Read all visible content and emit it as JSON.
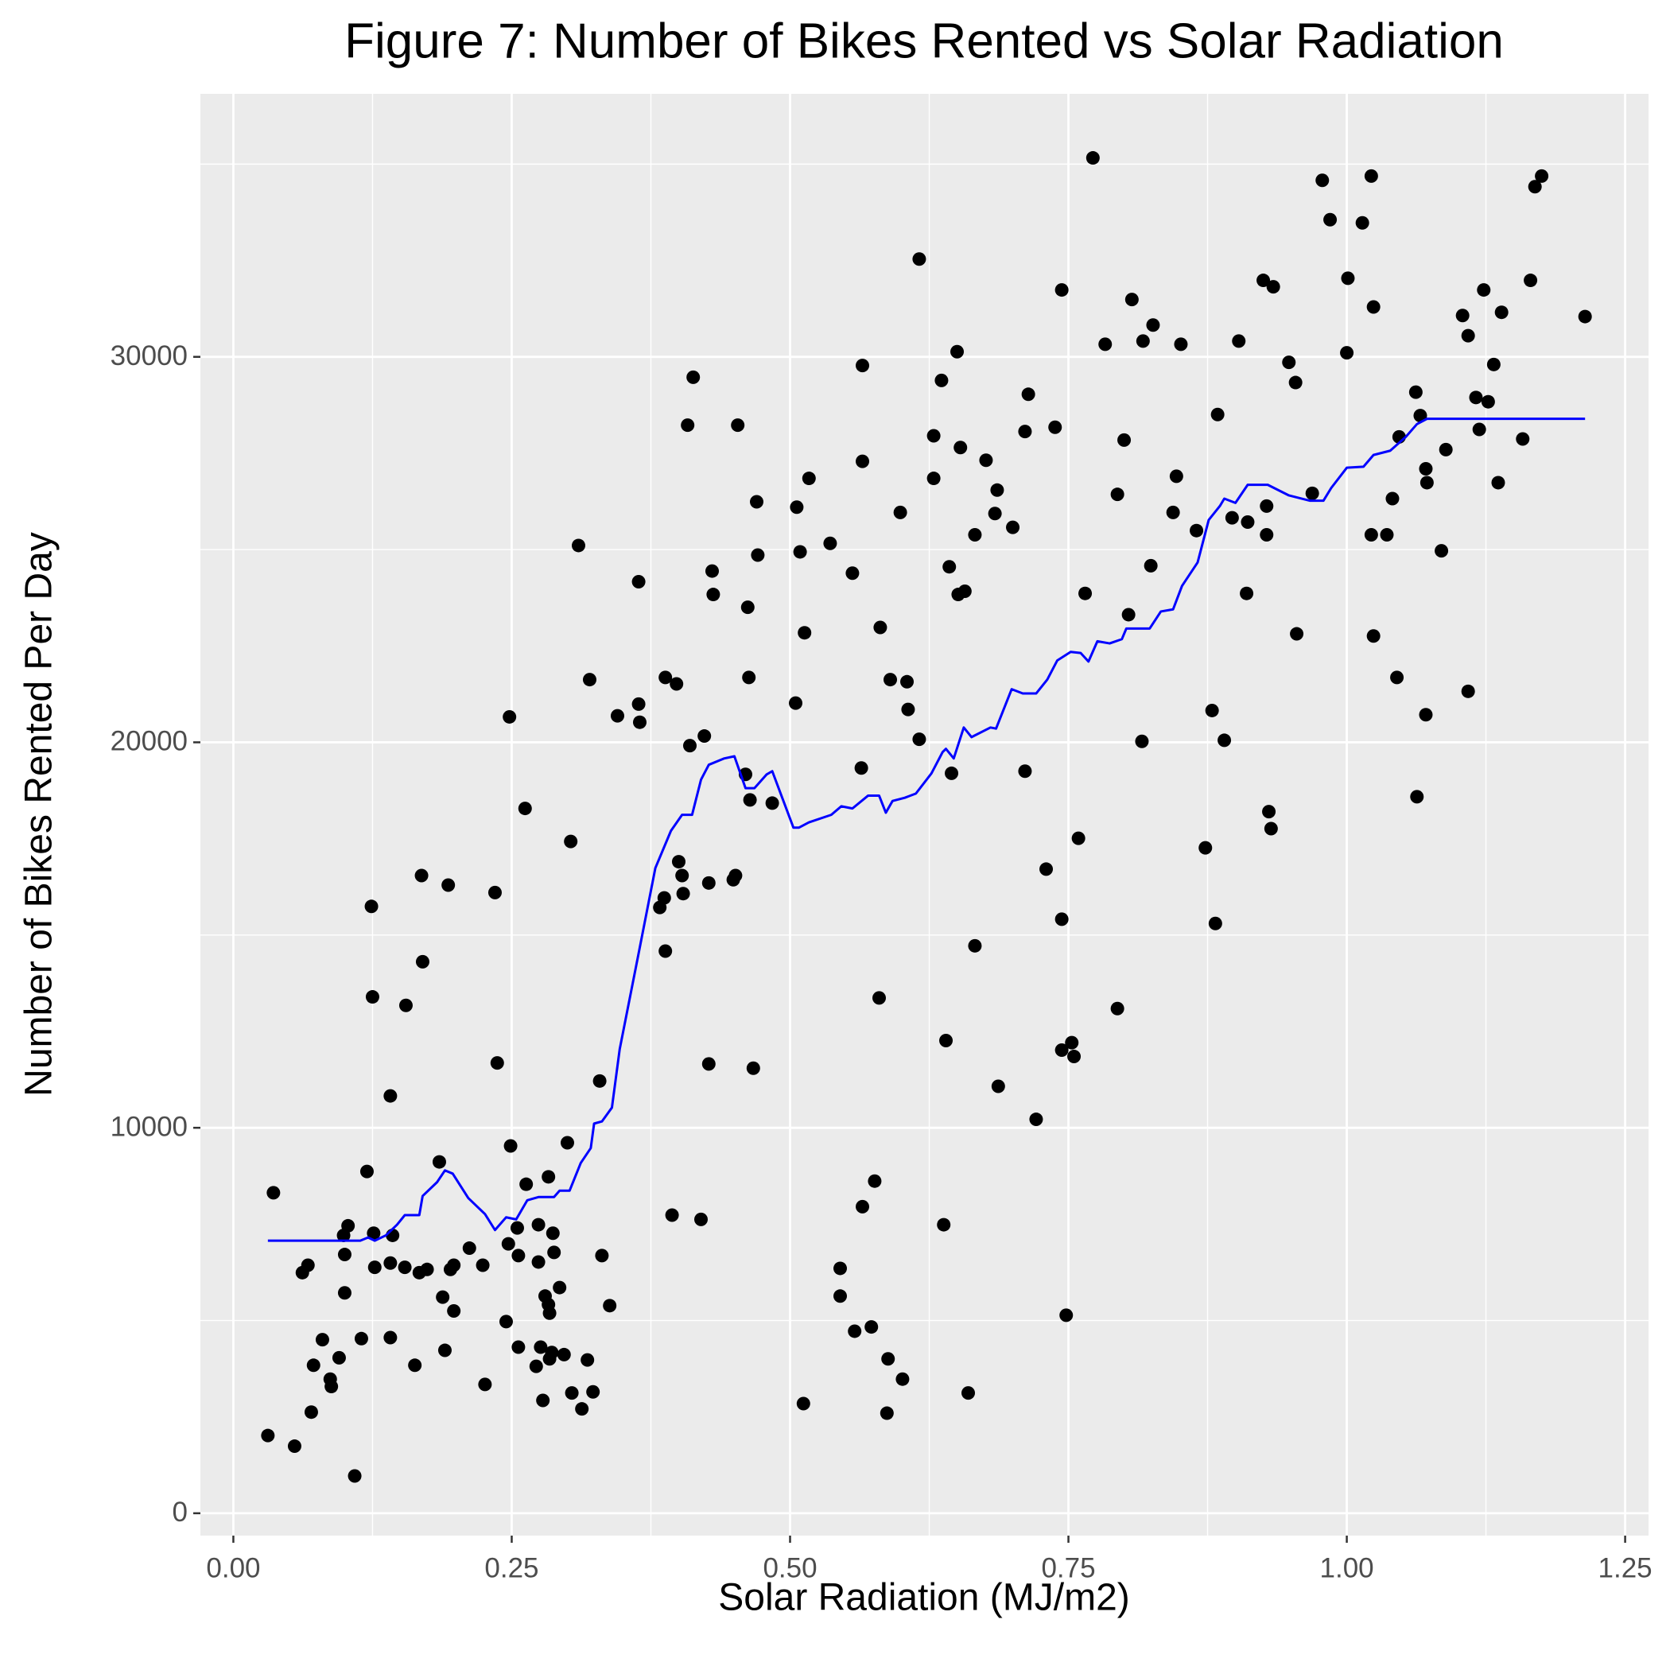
{
  "chart_data": {
    "type": "scatter",
    "title": "Figure 7: Number of Bikes Rented vs Solar Radiation",
    "x_label": "Solar Radiation (MJ/m2)",
    "y_label": "Number of Bikes Rented Per Day",
    "xlim": [
      -0.0296,
      1.271
    ],
    "ylim": [
      -580,
      36823
    ],
    "xticks": [
      {
        "value": 0,
        "label": "0.00"
      },
      0.25,
      {
        "value": 0.5,
        "label": "0.50"
      },
      0.75,
      {
        "value": 1,
        "label": "1.00"
      },
      1.25
    ],
    "yticks": [
      0,
      10000,
      20000,
      30000
    ],
    "grid": true,
    "background": "#ebebeb",
    "series": [
      {
        "type": "scatter",
        "color": "#000000",
        "x": [
          0.036,
          0.031,
          0.055,
          0.062,
          0.067,
          0.07,
          0.072,
          0.08,
          0.087,
          0.088,
          0.095,
          0.099,
          0.1,
          0.1,
          0.103,
          0.109,
          0.115,
          0.12,
          0.124,
          0.125,
          0.126,
          0.127,
          0.141,
          0.141,
          0.141,
          0.143,
          0.154,
          0.155,
          0.163,
          0.167,
          0.169,
          0.17,
          0.174,
          0.185,
          0.188,
          0.19,
          0.193,
          0.195,
          0.198,
          0.198,
          0.212,
          0.224,
          0.226,
          0.235,
          0.237,
          0.245,
          0.247,
          0.248,
          0.249,
          0.255,
          0.256,
          0.256,
          0.262,
          0.263,
          0.272,
          0.274,
          0.274,
          0.276,
          0.278,
          0.28,
          0.283,
          0.283,
          0.284,
          0.284,
          0.286,
          0.287,
          0.288,
          0.293,
          0.297,
          0.3,
          0.303,
          0.304,
          0.31,
          0.313,
          0.318,
          0.32,
          0.323,
          0.329,
          0.331,
          0.338,
          0.345,
          0.364,
          0.364,
          0.365,
          0.383,
          0.387,
          0.388,
          0.388,
          0.394,
          0.398,
          0.4,
          0.403,
          0.404,
          0.408,
          0.41,
          0.413,
          0.42,
          0.423,
          0.427,
          0.427,
          0.43,
          0.431,
          0.449,
          0.451,
          0.453,
          0.46,
          0.462,
          0.463,
          0.464,
          0.467,
          0.47,
          0.471,
          0.484,
          0.505,
          0.506,
          0.509,
          0.512,
          0.513,
          0.517,
          0.536,
          0.545,
          0.545,
          0.556,
          0.558,
          0.564,
          0.565,
          0.565,
          0.565,
          0.573,
          0.576,
          0.58,
          0.581,
          0.587,
          0.588,
          0.59,
          0.599,
          0.601,
          0.605,
          0.606,
          0.616,
          0.616,
          0.629,
          0.629,
          0.636,
          0.638,
          0.64,
          0.643,
          0.645,
          0.65,
          0.651,
          0.653,
          0.657,
          0.66,
          0.666,
          0.666,
          0.676,
          0.684,
          0.686,
          0.687,
          0.7,
          0.711,
          0.711,
          0.714,
          0.721,
          0.73,
          0.738,
          0.744,
          0.744,
          0.744,
          0.748,
          0.753,
          0.755,
          0.759,
          0.765,
          0.772,
          0.783,
          0.794,
          0.794,
          0.8,
          0.804,
          0.807,
          0.816,
          0.817,
          0.824,
          0.826,
          0.844,
          0.847,
          0.851,
          0.865,
          0.873,
          0.879,
          0.882,
          0.884,
          0.89,
          0.897,
          0.903,
          0.91,
          0.911,
          0.925,
          0.928,
          0.928,
          0.93,
          0.932,
          0.934,
          0.948,
          0.954,
          0.955,
          0.969,
          0.978,
          0.985,
          1.0,
          1.001,
          1.014,
          1.022,
          1.022,
          1.024,
          1.024,
          1.036,
          1.041,
          1.045,
          1.047,
          1.062,
          1.063,
          1.066,
          1.071,
          1.071,
          1.072,
          1.085,
          1.089,
          1.104,
          1.109,
          1.109,
          1.116,
          1.119,
          1.123,
          1.127,
          1.132,
          1.136,
          1.139,
          1.158,
          1.165,
          1.169,
          1.175,
          1.214
        ],
        "values": [
          8314,
          2016,
          1740,
          6242,
          6435,
          2624,
          3839,
          4502,
          3480,
          3287,
          4033,
          7209,
          6712,
          5717,
          7457,
          967,
          4530,
          8866,
          15743,
          13396,
          7264,
          6380,
          10827,
          4557,
          6491,
          7209,
          6380,
          13175,
          3839,
          6242,
          16544,
          14307,
          6325,
          9115,
          5607,
          4226,
          16296,
          6325,
          6435,
          5248,
          6877,
          6435,
          3342,
          16102,
          11683,
          4972,
          6988,
          20660,
          9529,
          7402,
          4309,
          6684,
          18285,
          8535,
          3812,
          7485,
          6518,
          4309,
          2928,
          5634,
          8728,
          5413,
          5192,
          4005,
          4171,
          7264,
          6767,
          5855,
          4115,
          9612,
          17428,
          3121,
          25106,
          2707,
          3977,
          21627,
          3149,
          11214,
          6684,
          5386,
          20687,
          24167,
          20991,
          20521,
          15716,
          15964,
          14583,
          21682,
          7734,
          21516,
          16903,
          16544,
          16075,
          28228,
          19914,
          29471,
          7623,
          20163,
          16351,
          11656,
          24443,
          23835,
          16434,
          16544,
          28228,
          19168,
          23504,
          21682,
          18505,
          11545,
          26239,
          24858,
          18422,
          21018,
          26101,
          24941,
          2845,
          22842,
          26847,
          25162,
          6353,
          5634,
          24388,
          4723,
          19334,
          29775,
          27289,
          7954,
          4834,
          8617,
          13368,
          22980,
          2596,
          4005,
          21627,
          25963,
          3480,
          21571,
          20853,
          20079,
          32537,
          27952,
          26847,
          29388,
          7485,
          12263,
          24554,
          19196,
          30134,
          23835,
          27648,
          23918,
          3121,
          14721,
          25383,
          27317,
          25935,
          26543,
          11076,
          25576,
          19251,
          28062,
          29029,
          10219,
          16710,
          28173,
          31736,
          15412,
          12015,
          5137,
          12208,
          11849,
          17511,
          23863,
          35161,
          30327,
          13092,
          26432,
          27841,
          23311,
          31487,
          20024,
          30410,
          24582,
          30824,
          25963,
          26902,
          30327,
          25493,
          17262,
          20825,
          15301,
          28504,
          20052,
          25825,
          30410,
          23863,
          25714,
          31984,
          25383,
          26129,
          18202,
          17760,
          31818,
          29858,
          29333,
          22814,
          26460,
          34580,
          33558,
          30106,
          32040,
          33475,
          34691,
          25383,
          22759,
          31294,
          25383,
          26322,
          21682,
          27924,
          29084,
          18588,
          28476,
          20715,
          27095,
          26736,
          24968,
          27593,
          31073,
          30548,
          21323,
          28946,
          28117,
          31736,
          28835,
          29802,
          26736,
          31156,
          27869,
          31984,
          34414,
          34691,
          31045
        ]
      },
      {
        "type": "line",
        "color": "#0000ff",
        "x": [
          0.031,
          0.114,
          0.121,
          0.127,
          0.137,
          0.147,
          0.154,
          0.167,
          0.17,
          0.183,
          0.19,
          0.197,
          0.211,
          0.226,
          0.235,
          0.245,
          0.254,
          0.264,
          0.274,
          0.288,
          0.293,
          0.302,
          0.312,
          0.321,
          0.324,
          0.331,
          0.34,
          0.347,
          0.364,
          0.379,
          0.393,
          0.403,
          0.412,
          0.42,
          0.427,
          0.441,
          0.45,
          0.46,
          0.468,
          0.479,
          0.484,
          0.503,
          0.508,
          0.517,
          0.537,
          0.546,
          0.556,
          0.57,
          0.58,
          0.586,
          0.592,
          0.603,
          0.613,
          0.627,
          0.637,
          0.64,
          0.647,
          0.656,
          0.663,
          0.68,
          0.685,
          0.699,
          0.709,
          0.721,
          0.731,
          0.74,
          0.752,
          0.761,
          0.768,
          0.776,
          0.787,
          0.798,
          0.802,
          0.823,
          0.833,
          0.844,
          0.852,
          0.866,
          0.876,
          0.886,
          0.89,
          0.9,
          0.911,
          0.929,
          0.948,
          0.967,
          0.979,
          0.986,
          1.0,
          1.015,
          1.024,
          1.039,
          1.053,
          1.063,
          1.072,
          1.214
        ],
        "values": [
          7071,
          7071,
          7154,
          7071,
          7209,
          7485,
          7734,
          7734,
          8231,
          8590,
          8894,
          8811,
          8176,
          7761,
          7347,
          7678,
          7623,
          8120,
          8203,
          8203,
          8369,
          8369,
          9087,
          9474,
          10109,
          10164,
          10523,
          12042,
          14528,
          16738,
          17704,
          18119,
          18119,
          19030,
          19417,
          19583,
          19638,
          18809,
          18809,
          19168,
          19251,
          17787,
          17787,
          17925,
          18119,
          18340,
          18284,
          18616,
          18616,
          18174,
          18478,
          18561,
          18671,
          19196,
          19748,
          19831,
          19583,
          20384,
          20135,
          20384,
          20356,
          21378,
          21267,
          21267,
          21627,
          22124,
          22345,
          22317,
          22096,
          22621,
          22566,
          22676,
          22952,
          22952,
          23394,
          23449,
          24057,
          24665,
          25769,
          26129,
          26322,
          26211,
          26681,
          26681,
          26405,
          26267,
          26267,
          26598,
          27123,
          27150,
          27454,
          27565,
          27924,
          28255,
          28393,
          28393
        ]
      }
    ]
  }
}
